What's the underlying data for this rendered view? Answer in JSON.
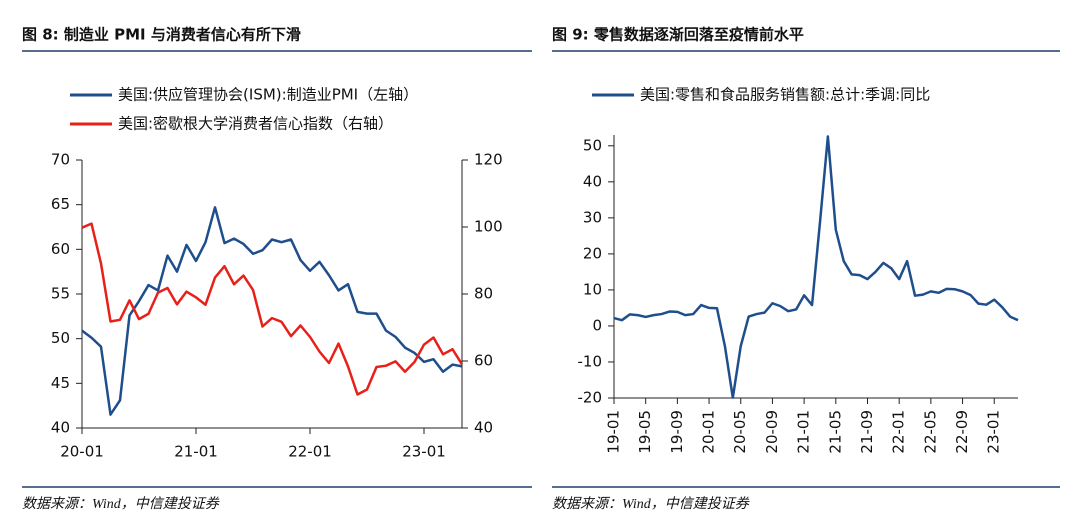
{
  "chart_data": [
    {
      "type": "line",
      "title": "图 8: 制造业 PMI 与消费者信心有所下滑",
      "source": "数据来源：Wind，中信建投证券",
      "x": [
        "20-01",
        "20-02",
        "20-03",
        "20-04",
        "20-05",
        "20-06",
        "20-07",
        "20-08",
        "20-09",
        "20-10",
        "20-11",
        "20-12",
        "21-01",
        "21-02",
        "21-03",
        "21-04",
        "21-05",
        "21-06",
        "21-07",
        "21-08",
        "21-09",
        "21-10",
        "21-11",
        "21-12",
        "22-01",
        "22-02",
        "22-03",
        "22-04",
        "22-05",
        "22-06",
        "22-07",
        "22-08",
        "22-09",
        "22-10",
        "22-11",
        "22-12",
        "23-01",
        "23-02",
        "23-03",
        "23-04",
        "23-05"
      ],
      "xticks": [
        "20-01",
        "21-01",
        "22-01",
        "23-01"
      ],
      "ylim": [
        40,
        70
      ],
      "yticks": [
        40,
        45,
        50,
        55,
        60,
        65,
        70
      ],
      "y2lim": [
        40,
        120
      ],
      "y2ticks": [
        40,
        60,
        80,
        100,
        120
      ],
      "series": [
        {
          "name": "美国:供应管理协会(ISM):制造业PMI（左轴）",
          "color": "#1f4e8c",
          "values": [
            50.9,
            50.1,
            49.1,
            41.5,
            43.1,
            52.6,
            54.2,
            56.0,
            55.4,
            59.3,
            57.5,
            60.5,
            58.7,
            60.8,
            64.7,
            60.7,
            61.2,
            60.6,
            59.5,
            59.9,
            61.1,
            60.8,
            61.1,
            58.8,
            57.6,
            58.6,
            57.1,
            55.4,
            56.1,
            53.0,
            52.8,
            52.8,
            50.9,
            50.2,
            49.0,
            48.4,
            47.4,
            47.7,
            46.3,
            47.1,
            46.9
          ]
        },
        {
          "name": "美国:密歇根大学消费者信心指数（右轴）",
          "color": "#e8201a",
          "axis": "y2",
          "values": [
            99.8,
            101.0,
            89.1,
            71.8,
            72.3,
            78.1,
            72.5,
            74.1,
            80.4,
            81.8,
            76.9,
            80.7,
            79.0,
            76.8,
            84.9,
            88.3,
            82.9,
            85.5,
            81.2,
            70.3,
            72.8,
            71.7,
            67.4,
            70.6,
            67.2,
            62.8,
            59.4,
            65.2,
            58.4,
            50.0,
            51.5,
            58.2,
            58.6,
            59.9,
            56.8,
            59.7,
            64.9,
            67.0,
            62.0,
            63.5,
            59.0
          ]
        }
      ]
    },
    {
      "type": "line",
      "title": "图 9: 零售数据逐渐回落至疫情前水平",
      "source": "数据来源：Wind，中信建投证券",
      "x": [
        "19-01",
        "19-02",
        "19-03",
        "19-04",
        "19-05",
        "19-06",
        "19-07",
        "19-08",
        "19-09",
        "19-10",
        "19-11",
        "19-12",
        "20-01",
        "20-02",
        "20-03",
        "20-04",
        "20-05",
        "20-06",
        "20-07",
        "20-08",
        "20-09",
        "20-10",
        "20-11",
        "20-12",
        "21-01",
        "21-02",
        "21-03",
        "21-04",
        "21-05",
        "21-06",
        "21-07",
        "21-08",
        "21-09",
        "21-10",
        "21-11",
        "21-12",
        "22-01",
        "22-02",
        "22-03",
        "22-04",
        "22-05",
        "22-06",
        "22-07",
        "22-08",
        "22-09",
        "22-10",
        "22-11",
        "22-12",
        "23-01",
        "23-02",
        "23-03",
        "23-04"
      ],
      "xticks": [
        "19-01",
        "19-05",
        "19-09",
        "20-01",
        "20-05",
        "20-09",
        "21-01",
        "21-05",
        "21-09",
        "22-01",
        "22-05",
        "22-09",
        "23-01"
      ],
      "ylim": [
        -20,
        53
      ],
      "yticks": [
        -20,
        -10,
        0,
        10,
        20,
        30,
        40,
        50
      ],
      "series": [
        {
          "name": "美国:零售和食品服务销售额:总计:季调:同比",
          "color": "#1f4e8c",
          "values": [
            2.2,
            1.6,
            3.2,
            3.0,
            2.5,
            3.0,
            3.3,
            4.0,
            3.9,
            3.0,
            3.3,
            5.8,
            5.0,
            4.9,
            -5.6,
            -19.9,
            -5.6,
            2.6,
            3.3,
            3.7,
            6.3,
            5.5,
            4.1,
            4.6,
            8.5,
            5.8,
            28.7,
            52.6,
            26.7,
            18.0,
            14.3,
            14.1,
            13.0,
            15.0,
            17.5,
            16.0,
            13.0,
            18.0,
            8.4,
            8.7,
            9.6,
            9.2,
            10.3,
            10.2,
            9.6,
            8.6,
            6.2,
            5.9,
            7.3,
            5.2,
            2.6,
            1.6
          ]
        }
      ]
    }
  ]
}
